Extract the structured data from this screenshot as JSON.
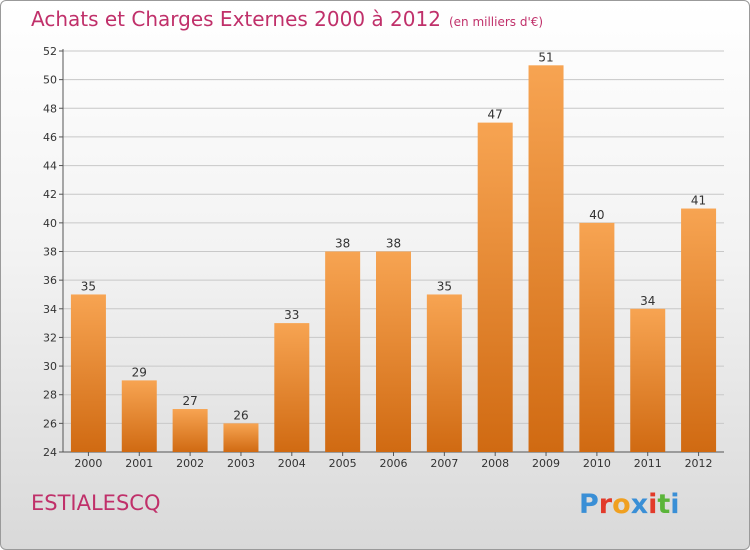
{
  "header": {
    "title": "Achats et Charges Externes 2000 à 2012",
    "unit": "(en milliers d'€)"
  },
  "footer": {
    "commune": "ESTIALESCQ",
    "logo_text": "Proxiti",
    "logo_colors": [
      "#3a8fd6",
      "#e23a2a",
      "#f0a020",
      "#3a8fd6",
      "#e23a2a",
      "#5bb53a",
      "#3a8fd6"
    ]
  },
  "colors": {
    "bar_top": "#f7a452",
    "bar_bottom": "#d06a12",
    "title": "#c0306a",
    "grid": "#c8c8c8"
  },
  "chart_data": {
    "type": "bar",
    "title": "Achats et Charges Externes 2000 à 2012",
    "subtitle": "(en milliers d'€)",
    "xlabel": "",
    "ylabel": "",
    "categories": [
      "2000",
      "2001",
      "2002",
      "2003",
      "2004",
      "2005",
      "2006",
      "2007",
      "2008",
      "2009",
      "2010",
      "2011",
      "2012"
    ],
    "values": [
      35,
      29,
      27,
      26,
      33,
      38,
      38,
      35,
      47,
      51,
      40,
      34,
      41
    ],
    "ylim": [
      24,
      52
    ],
    "yticks": [
      24,
      26,
      28,
      30,
      32,
      34,
      36,
      38,
      40,
      42,
      44,
      46,
      48,
      50,
      52
    ],
    "grid": true,
    "data_labels": true
  }
}
